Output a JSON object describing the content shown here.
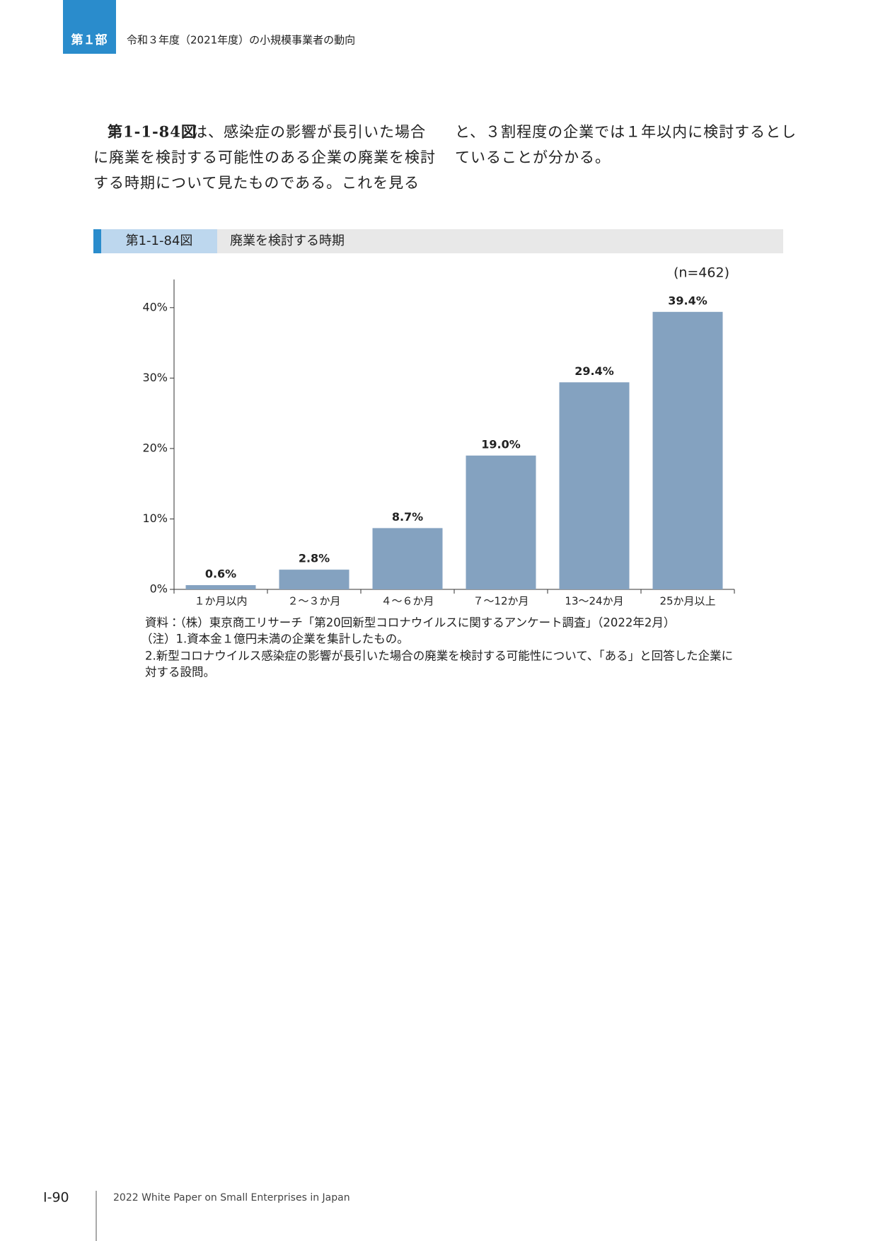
{
  "header": {
    "part": "第１部",
    "title": "令和３年度（2021年度）の小規模事業者の動向"
  },
  "body": {
    "figure_ref": "第1-1-84図",
    "left_lines": [
      "は、感染症の影響が長引いた場合",
      "に廃業を検討する可能性のある企業の廃業を検討",
      "する時期について見たものである。これを見る"
    ],
    "right_lines": [
      "と、３割程度の企業では１年以内に検討するとし",
      "ていることが分かる。"
    ]
  },
  "figure": {
    "number": "第1-1-84図",
    "title": "廃業を検討する時期"
  },
  "chart_data": {
    "type": "bar",
    "annotation": "(n=462)",
    "categories": [
      "１か月以内",
      "２～３か月",
      "４～６か月",
      "７～12か月",
      "13～24か月",
      "25か月以上"
    ],
    "values": [
      0.6,
      2.8,
      8.7,
      19.0,
      29.4,
      39.4
    ],
    "value_labels": [
      "0.6%",
      "2.8%",
      "8.7%",
      "19.0%",
      "29.4%",
      "39.4%"
    ],
    "color": "#84a2c0",
    "ylim": [
      0,
      44
    ],
    "yticks": [
      {
        "value": 0,
        "label": "0%"
      },
      {
        "value": 10,
        "label": "10%"
      },
      {
        "value": 20,
        "label": "20%"
      },
      {
        "value": 30,
        "label": "30%"
      },
      {
        "value": 40,
        "label": "40%"
      }
    ]
  },
  "notes": [
    "資料：（株）東京商工リサーチ「第20回新型コロナウイルスに関するアンケート調査」（2022年2月）",
    "（注）1.資本金１億円未満の企業を集計したもの。",
    "2.新型コロナウイルス感染症の影響が長引いた場合の廃業を検討する可能性について、「ある」と回答した企業に",
    "対する設問。"
  ],
  "footer": {
    "page": "I-90",
    "text": "2022 White Paper on Small Enterprises in Japan"
  }
}
